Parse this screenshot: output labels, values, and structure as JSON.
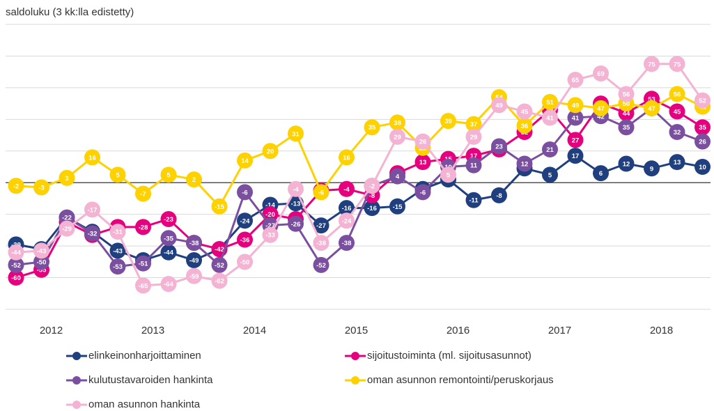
{
  "chart_data": {
    "type": "line",
    "title": "saldoluku (3 kk:lla edistetty)",
    "categories": [
      null,
      "2012",
      null,
      null,
      null,
      "2013",
      null,
      null,
      null,
      "2014",
      null,
      null,
      null,
      "2015",
      null,
      null,
      null,
      "2016",
      null,
      null,
      null,
      "2017",
      null,
      null,
      null,
      "2018",
      null,
      null
    ],
    "ylim": [
      -80,
      100
    ],
    "yticks": [
      -80,
      -60,
      -40,
      -20,
      0,
      20,
      40,
      60,
      80,
      100
    ],
    "grid": true,
    "series": [
      {
        "name": "elinkeinonharjoittaminen",
        "color": "#1f3f7f",
        "values": [
          -39,
          -42,
          -22,
          -31,
          -43,
          -49,
          -44,
          -49,
          -42,
          -24,
          -14,
          -13,
          -27,
          -16,
          -16,
          -15,
          -4,
          2,
          -11,
          -8,
          9,
          5,
          17,
          6,
          12,
          9,
          13,
          10
        ]
      },
      {
        "name": "sijoitustoiminta (ml. sijoitusasunnot)",
        "color": "#e6007e",
        "values": [
          -60,
          -55,
          -25,
          -33,
          -28,
          -28,
          -23,
          -38,
          -42,
          -36,
          -20,
          -23,
          -5,
          -4,
          -8,
          6,
          13,
          15,
          17,
          21,
          32,
          46,
          27,
          50,
          44,
          53,
          45,
          35
        ]
      },
      {
        "name": "kulutustavaroiden hankinta",
        "color": "#7b4fa0",
        "values": [
          -52,
          -50,
          -22,
          -32,
          -53,
          -51,
          -35,
          -38,
          -52,
          -6,
          -27,
          -26,
          -52,
          -38,
          -2,
          4,
          -6,
          10,
          11,
          23,
          12,
          21,
          41,
          42,
          35,
          47,
          32,
          26
        ]
      },
      {
        "name": "oman asunnon remontointi/peruskorjaus",
        "color": "#fed100",
        "values": [
          -2,
          -3,
          3,
          16,
          5,
          -7,
          5,
          2,
          -15,
          14,
          20,
          31,
          -6,
          16,
          35,
          38,
          22,
          39,
          37,
          54,
          36,
          51,
          49,
          47,
          50,
          47,
          56,
          48
        ]
      },
      {
        "name": "oman asunnon hankinta",
        "color": "#f4b3d3",
        "values": [
          -44,
          -43,
          -29,
          -17,
          -31,
          -65,
          -64,
          -59,
          -62,
          -50,
          -33,
          -4,
          -38,
          -24,
          -2,
          29,
          26,
          5,
          29,
          49,
          45,
          41,
          65,
          69,
          56,
          75,
          75,
          52
        ]
      }
    ]
  }
}
